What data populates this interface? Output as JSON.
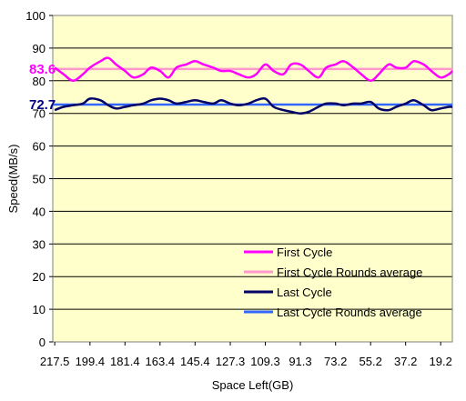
{
  "chart_data": {
    "type": "line",
    "title": "",
    "xlabel": "Space Left(GB)",
    "ylabel": "Speed(MB/s)",
    "ylim": [
      0,
      100
    ],
    "yticks": [
      0,
      10,
      20,
      30,
      40,
      50,
      60,
      70,
      80,
      90,
      100
    ],
    "xlim": [
      218.5,
      13.2
    ],
    "xtick_labels": [
      "217.5",
      "199.4",
      "181.4",
      "163.4",
      "145.4",
      "127.3",
      "109.3",
      "91.3",
      "73.2",
      "55.2",
      "37.2",
      "19.2"
    ],
    "xtick_values": [
      217.5,
      199.4,
      181.4,
      163.4,
      145.4,
      127.3,
      109.3,
      91.3,
      73.2,
      55.2,
      37.2,
      19.2
    ],
    "grid": "horizontal",
    "legend_position": "bottom-right",
    "colors": {
      "plot_background": "#ffffcc",
      "first_cycle": "#ff00ff",
      "first_cycle_avg": "#ff99cc",
      "last_cycle": "#000066",
      "last_cycle_avg": "#3366ff",
      "first_label": "#ff00ff",
      "last_label": "#000080"
    },
    "series": [
      {
        "name": "First Cycle",
        "x": [
          217.5,
          213,
          208,
          203,
          199.4,
          194,
          190,
          186,
          181.4,
          177,
          172,
          168,
          163.4,
          159,
          155,
          150,
          145.4,
          141,
          136,
          132,
          127.3,
          123,
          118,
          114,
          109.3,
          105,
          100,
          96,
          91.3,
          87,
          82,
          78,
          73.2,
          69,
          64,
          60,
          55.2,
          51,
          46,
          42,
          37.2,
          33,
          28,
          24,
          19.2,
          15,
          13.2
        ],
        "y": [
          84,
          82,
          80,
          82,
          84,
          86,
          87,
          85,
          83,
          81,
          82,
          84,
          83,
          81,
          84,
          85,
          86,
          85,
          84,
          83,
          83,
          82,
          81,
          82,
          85,
          83,
          82,
          85,
          85,
          83,
          81,
          84,
          85,
          86,
          84,
          82,
          80,
          82,
          85,
          84,
          84,
          86,
          85,
          83,
          81,
          82,
          83
        ]
      },
      {
        "name": "First Cycle Rounds average",
        "x": [
          218.5,
          13.2
        ],
        "y": [
          83.6,
          83.6
        ]
      },
      {
        "name": "Last Cycle",
        "x": [
          217.5,
          213,
          208,
          203,
          199.4,
          194,
          190,
          186,
          181.4,
          177,
          172,
          168,
          163.4,
          159,
          155,
          150,
          145.4,
          141,
          136,
          132,
          127.3,
          123,
          118,
          114,
          109.3,
          105,
          100,
          96,
          91.3,
          87,
          82,
          78,
          73.2,
          69,
          64,
          60,
          55.2,
          51,
          46,
          42,
          37.2,
          33,
          28,
          24,
          19.2,
          15,
          13.2
        ],
        "y": [
          71,
          72,
          72.5,
          73,
          74.5,
          74,
          72.5,
          71.5,
          72,
          72.5,
          73,
          74,
          74.5,
          74,
          73,
          73.5,
          74,
          73.5,
          73,
          74,
          73,
          72.5,
          73,
          74,
          74.5,
          72,
          71,
          70.5,
          70,
          70.5,
          72,
          73,
          73,
          72.5,
          73,
          73,
          73.5,
          71.5,
          71,
          72,
          73,
          74,
          72.5,
          71,
          71.5,
          72,
          72
        ]
      },
      {
        "name": "Last Cycle Rounds average",
        "x": [
          218.5,
          13.2
        ],
        "y": [
          72.7,
          72.7
        ]
      }
    ],
    "annotations": [
      {
        "text": "83.6",
        "series": "First Cycle Rounds average",
        "value": 83.6
      },
      {
        "text": "72.7",
        "series": "Last Cycle Rounds average",
        "value": 72.7
      }
    ]
  }
}
